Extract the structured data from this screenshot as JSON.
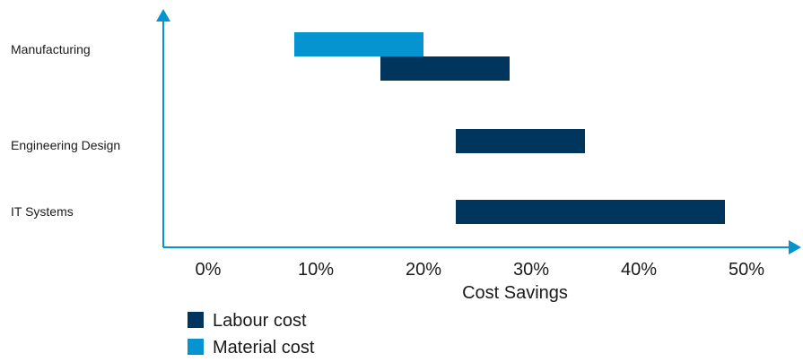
{
  "chart_data": {
    "type": "bar",
    "subtype": "floating-range-horizontal",
    "categories": [
      "Manufacturing",
      "Engineering Design",
      "IT Systems"
    ],
    "series": [
      {
        "name": "Labour cost",
        "color": "#00365e",
        "ranges": [
          [
            16,
            28
          ],
          [
            23,
            35
          ],
          [
            23,
            48
          ]
        ]
      },
      {
        "name": "Material cost",
        "color": "#0594d0",
        "ranges": [
          [
            8,
            20
          ],
          null,
          null
        ]
      }
    ],
    "xlabel": "Cost Savings",
    "ylabel": "",
    "x_ticks": [
      "0%",
      "10%",
      "20%",
      "30%",
      "40%",
      "50%"
    ],
    "x_tick_values": [
      0,
      10,
      20,
      30,
      40,
      50
    ],
    "xlim": [
      0,
      50
    ],
    "grid": false,
    "legend_position": "bottom-left",
    "axis_color": "#0594d0",
    "text_color": "#1a1a1a"
  }
}
